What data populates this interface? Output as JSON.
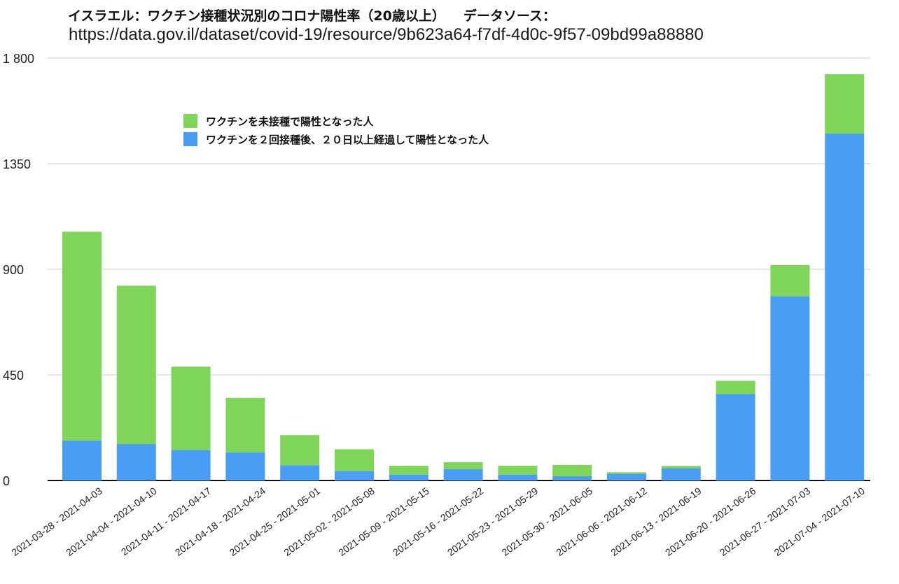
{
  "title": "イスラエル：ワクチン接種状況別のコロナ陽性率（20歳以上）",
  "source_label": "データソース：",
  "source_url": "https://data.gov.il/dataset/covid-19/resource/9b623a64-f7df-4d0c-9f57-09bd99a88880",
  "chart_data": {
    "type": "bar",
    "stacked": true,
    "title": "イスラエル：ワクチン接種状況別のコロナ陽性率（20歳以上）",
    "xlabel": "",
    "ylabel": "",
    "ylim": [
      0,
      1800
    ],
    "yticks": [
      0,
      450,
      900,
      1350,
      1800
    ],
    "ytick_labels": [
      "0",
      "450",
      "900",
      "1350",
      "1 800"
    ],
    "grid": true,
    "legend_position": "top-left",
    "categories": [
      "2021-03-28 - 2021-04-03",
      "2021-04-04 - 2021-04-10",
      "2021-04-11 - 2021-04-17",
      "2021-04-18 - 2021-04-24",
      "2021-04-25 - 2021-05-01",
      "2021-05-02 - 2021-05-08",
      "2021-05-09 - 2021-05-15",
      "2021-05-16 - 2021-05-22",
      "2021-05-23 - 2021-05-29",
      "2021-05-30 - 2021-06-05",
      "2021-06-06 - 2021-06-12",
      "2021-06-13 - 2021-06-19",
      "2021-06-20 - 2021-06-26",
      "2021-06-27 - 2021-07-03",
      "2021-07-04 - 2021-07-10"
    ],
    "series": [
      {
        "name": "ワクチンを２回接種後、２０日以上経過して陽性となった人",
        "color": "#4a9df5",
        "values": [
          170,
          155,
          130,
          120,
          65,
          40,
          25,
          48,
          25,
          18,
          28,
          52,
          368,
          785,
          1478
        ]
      },
      {
        "name": "ワクチンを未接種で陽性となった人",
        "color": "#7fd45a",
        "values": [
          890,
          675,
          355,
          232,
          128,
          93,
          38,
          30,
          38,
          48,
          7,
          10,
          57,
          133,
          253
        ]
      }
    ]
  }
}
